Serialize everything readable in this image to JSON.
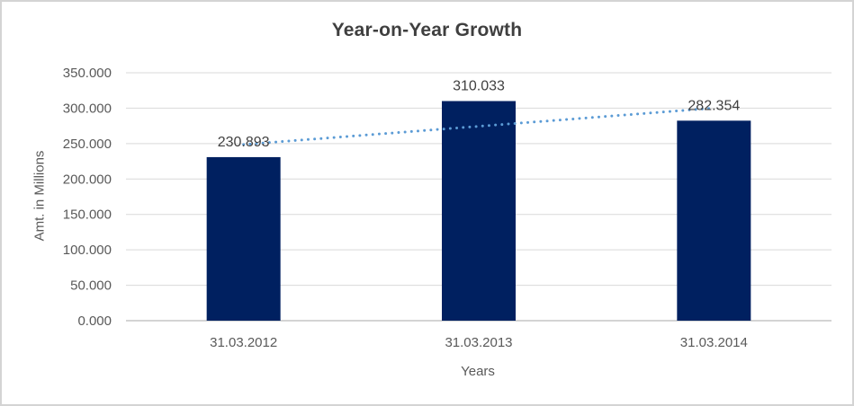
{
  "window": {
    "background": "#ffffff",
    "border_color": "#d4d4d4"
  },
  "chart_data": {
    "type": "bar",
    "title": "Year-on-Year Growth",
    "xlabel": "Years",
    "ylabel": "Amt. in Millions",
    "categories": [
      "31.03.2012",
      "31.03.2013",
      "31.03.2014"
    ],
    "values": [
      230.893,
      310.033,
      282.354
    ],
    "value_labels": [
      "230.893",
      "310.033",
      "282.354"
    ],
    "ylim": [
      0,
      350
    ],
    "ytick_step": 50,
    "ytick_labels": [
      "0.000",
      "50.000",
      "100.000",
      "150.000",
      "200.000",
      "250.000",
      "300.000",
      "350.000"
    ],
    "grid": true,
    "legend": false,
    "bar_color": "#002060",
    "trendline": {
      "type": "linear",
      "style": "dotted",
      "color": "#5B9BD5"
    },
    "colors": {
      "gridline": "#D9D9D9",
      "axis_line": "#C6C6C6",
      "title_text": "#3F3F3F",
      "axis_text": "#595959",
      "data_label_text": "#404040"
    }
  }
}
